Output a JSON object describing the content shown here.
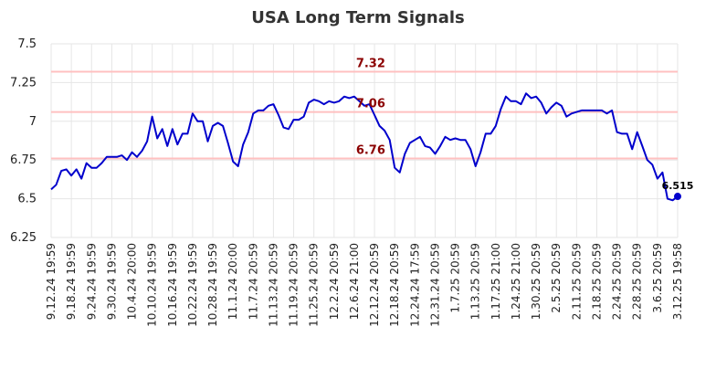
{
  "chart_data": {
    "type": "line",
    "title": "USA Long Term Signals",
    "xlabel": "",
    "ylabel": "",
    "ylim": [
      6.25,
      7.5
    ],
    "y_ticks": [
      "6.25",
      "6.5",
      "6.75",
      "7",
      "7.25",
      "7.5"
    ],
    "x_tick_labels": [
      "9.12.24 19:59",
      "9.18.24 19:59",
      "9.24.24 19:59",
      "9.30.24 19:59",
      "10.4.24 20:00",
      "10.10.24 19:59",
      "10.16.24 19:59",
      "10.22.24 19:59",
      "10.28.24 19:59",
      "11.1.24 20:00",
      "11.7.24 20:59",
      "11.13.24 20:59",
      "11.19.24 20:59",
      "11.25.24 20:59",
      "12.2.24 20:59",
      "12.6.24 21:00",
      "12.12.24 20:59",
      "12.18.24 20:59",
      "12.24.24 17:59",
      "12.31.24 20:59",
      "1.7.25 20:59",
      "1.13.25 20:59",
      "1.17.25 21:00",
      "1.24.25 21:00",
      "1.30.25 20:59",
      "2.5.25 20:59",
      "2.11.25 20:59",
      "2.18.25 20:59",
      "2.24.25 20:59",
      "2.28.25 20:59",
      "3.6.25 20:59",
      "3.12.25 19:58"
    ],
    "reference_lines": [
      {
        "value": 7.32,
        "label": "7.32"
      },
      {
        "value": 7.06,
        "label": "7.06"
      },
      {
        "value": 6.76,
        "label": "6.76"
      }
    ],
    "series": [
      {
        "values": [
          6.56,
          6.59,
          6.68,
          6.69,
          6.65,
          6.69,
          6.63,
          6.73,
          6.7,
          6.7,
          6.73,
          6.77,
          6.77,
          6.77,
          6.78,
          6.75,
          6.8,
          6.77,
          6.81,
          6.87,
          7.03,
          6.89,
          6.95,
          6.84,
          6.95,
          6.85,
          6.92,
          6.92,
          7.05,
          7.0,
          7.0,
          6.87,
          6.97,
          6.99,
          6.97,
          6.86,
          6.74,
          6.71,
          6.85,
          6.93,
          7.05,
          7.07,
          7.07,
          7.1,
          7.11,
          7.04,
          6.96,
          6.95,
          7.01,
          7.01,
          7.03,
          7.12,
          7.14,
          7.13,
          7.11,
          7.13,
          7.12,
          7.13,
          7.16,
          7.15,
          7.16,
          7.13,
          7.1,
          7.11,
          7.04,
          6.97,
          6.94,
          6.88,
          6.7,
          6.67,
          6.79,
          6.86,
          6.88,
          6.9,
          6.84,
          6.83,
          6.79,
          6.84,
          6.9,
          6.88,
          6.89,
          6.88,
          6.88,
          6.82,
          6.71,
          6.8,
          6.92,
          6.92,
          6.97,
          7.08,
          7.16,
          7.13,
          7.13,
          7.11,
          7.18,
          7.15,
          7.16,
          7.12,
          7.05,
          7.09,
          7.12,
          7.1,
          7.03,
          7.05,
          7.06,
          7.07,
          7.07,
          7.07,
          7.07,
          7.07,
          7.05,
          7.07,
          6.93,
          6.92,
          6.92,
          6.82,
          6.93,
          6.84,
          6.75,
          6.72,
          6.63,
          6.67,
          6.5,
          6.49,
          6.515
        ],
        "color": "#0000cc"
      }
    ],
    "last_value_label": "6.515",
    "grid": true,
    "colors": {
      "line": "#0000cc",
      "reference_line": "#ffc0c0",
      "reference_label": "#8b0000",
      "grid": "#e6e6e6",
      "title": "#333333"
    }
  }
}
